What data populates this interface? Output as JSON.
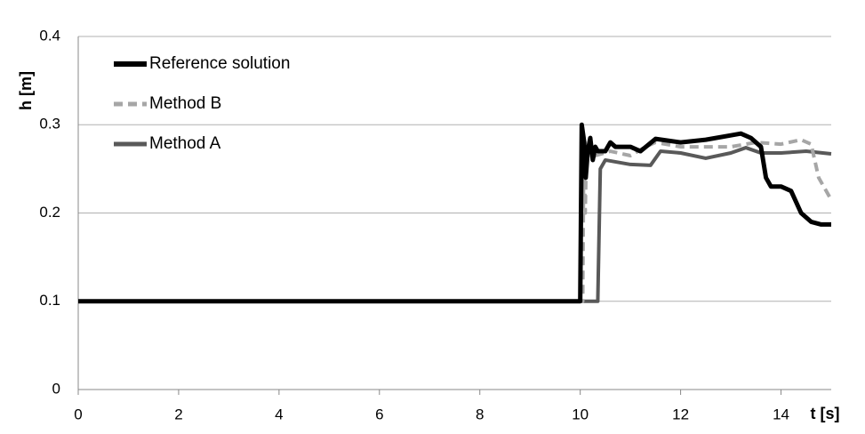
{
  "chart_data": {
    "type": "line",
    "x_label": "t [s]",
    "y_label": "h [m]",
    "xlim": [
      0,
      15
    ],
    "xticks": [
      0,
      2,
      4,
      6,
      8,
      10,
      12,
      14
    ],
    "ylim": [
      0,
      0.4
    ],
    "yticks": [
      0,
      0.1,
      0.2,
      0.3,
      0.4
    ],
    "grid": true,
    "legend": "upper left",
    "series": [
      {
        "name": "Reference solution",
        "color": "#000000",
        "line_style": "solid",
        "x": [
          0,
          10.0,
          10.03,
          10.08,
          10.11,
          10.15,
          10.2,
          10.25,
          10.3,
          10.35,
          10.5,
          10.6,
          10.7,
          11.0,
          11.2,
          11.5,
          12.0,
          12.5,
          13.0,
          13.2,
          13.4,
          13.6,
          13.7,
          13.8,
          14.0,
          14.2,
          14.4,
          14.6,
          14.8,
          15.0
        ],
        "values": [
          0.1,
          0.1,
          0.3,
          0.28,
          0.24,
          0.27,
          0.285,
          0.26,
          0.275,
          0.27,
          0.27,
          0.28,
          0.275,
          0.275,
          0.27,
          0.284,
          0.28,
          0.283,
          0.288,
          0.29,
          0.285,
          0.275,
          0.24,
          0.23,
          0.23,
          0.225,
          0.2,
          0.19,
          0.187,
          0.187
        ]
      },
      {
        "name": "Method B",
        "color": "#a6a6a6",
        "line_style": "dashed",
        "x": [
          0,
          10.05,
          10.07,
          10.1,
          10.12,
          10.3,
          10.6,
          11.0,
          11.3,
          11.5,
          12.0,
          13.0,
          13.5,
          14.0,
          14.4,
          14.6,
          14.75,
          15.0
        ],
        "values": [
          0.1,
          0.1,
          0.27,
          0.2,
          0.265,
          0.265,
          0.27,
          0.265,
          0.275,
          0.28,
          0.275,
          0.275,
          0.28,
          0.278,
          0.283,
          0.278,
          0.24,
          0.215
        ]
      },
      {
        "name": "Method A",
        "color": "#595959",
        "line_style": "solid",
        "x": [
          0,
          10.35,
          10.4,
          10.5,
          11.0,
          11.4,
          11.6,
          12.0,
          12.5,
          13.0,
          13.3,
          13.6,
          14.0,
          14.5,
          15.0
        ],
        "values": [
          0.1,
          0.1,
          0.25,
          0.26,
          0.255,
          0.254,
          0.27,
          0.268,
          0.262,
          0.268,
          0.274,
          0.268,
          0.268,
          0.27,
          0.267
        ]
      }
    ]
  }
}
